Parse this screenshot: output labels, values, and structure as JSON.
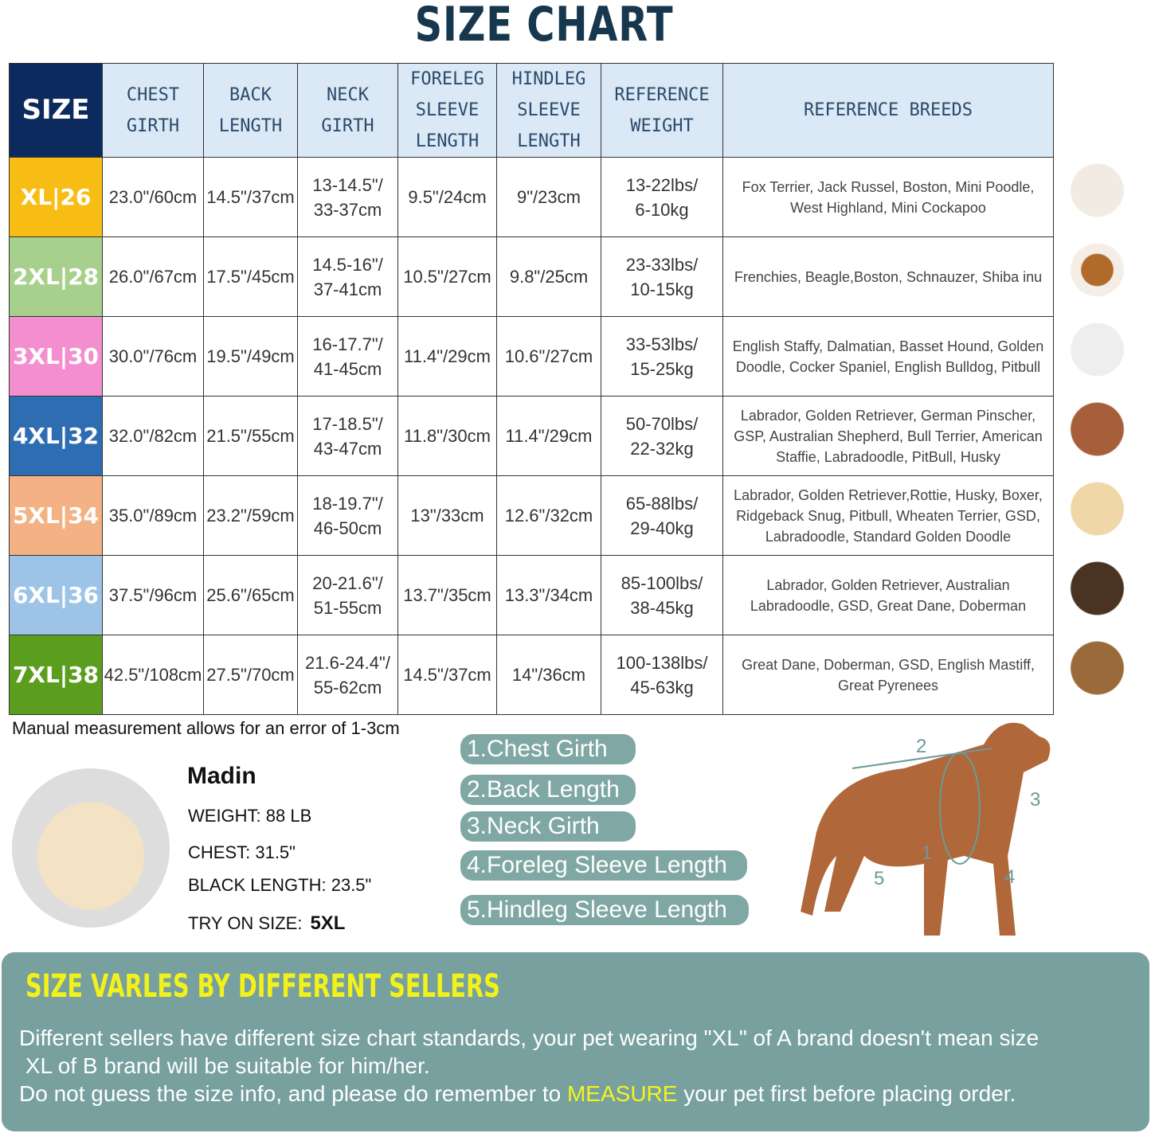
{
  "title": "SIZE CHART",
  "headers": [
    "SIZE",
    "CHEST GIRTH",
    "BACK LENGTH",
    "NECK GIRTH",
    "FORELEG SLEEVE LENGTH",
    "HINDLEG SLEEVE LENGTH",
    "REFERENCE WEIGHT",
    "REFERENCE BREEDS"
  ],
  "colors": {
    "header_bg": "#dbe8f5",
    "size_header": "#0d2a5e"
  },
  "rows": [
    {
      "size": "XL|26",
      "color": "#f8bd14",
      "chest": "23.0\"/60cm",
      "back": "14.5\"/37cm",
      "neck": "13-14.5\"/ 33-37cm",
      "foreleg": "9.5\"/24cm",
      "hindleg": "9\"/23cm",
      "weight": "13-22lbs/ 6-10kg",
      "breeds": "Fox Terrier, Jack Russel, Boston, Mini Poodle, West Highland, Mini Cockapoo"
    },
    {
      "size": "2XL|28",
      "color": "#a8d08d",
      "chest": "26.0\"/67cm",
      "back": "17.5\"/45cm",
      "neck": "14.5-16\"/ 37-41cm",
      "foreleg": "10.5\"/27cm",
      "hindleg": "9.8\"/25cm",
      "weight": "23-33lbs/ 10-15kg",
      "breeds": "Frenchies, Beagle,Boston, Schnauzer, Shiba inu"
    },
    {
      "size": "3XL|30",
      "color": "#f48fcf",
      "chest": "30.0\"/76cm",
      "back": "19.5\"/49cm",
      "neck": "16-17.7\"/ 41-45cm",
      "foreleg": "11.4\"/29cm",
      "hindleg": "10.6\"/27cm",
      "weight": "33-53lbs/ 15-25kg",
      "breeds": "English Staffy, Dalmatian, Basset Hound, Golden Doodle, Cocker Spaniel, English Bulldog, Pitbull"
    },
    {
      "size": "4XL|32",
      "color": "#2f6db3",
      "chest": "32.0\"/82cm",
      "back": "21.5\"/55cm",
      "neck": "17-18.5\"/ 43-47cm",
      "foreleg": "11.8\"/30cm",
      "hindleg": "11.4\"/29cm",
      "weight": "50-70lbs/ 22-32kg",
      "breeds": "Labrador, Golden Retriever, German Pinscher, GSP, Australian Shepherd, Bull Terrier, American Staffie, Labradoodle, PitBull, Husky"
    },
    {
      "size": "5XL|34",
      "color": "#f4b183",
      "chest": "35.0\"/89cm",
      "back": "23.2\"/59cm",
      "neck": "18-19.7\"/ 46-50cm",
      "foreleg": "13\"/33cm",
      "hindleg": "12.6\"/32cm",
      "weight": "65-88lbs/ 29-40kg",
      "breeds": "Labrador, Golden Retriever,Rottie, Husky, Boxer, Ridgeback Snug, Pitbull, Wheaten Terrier, GSD, Labradoodle,  Standard Golden Doodle"
    },
    {
      "size": "6XL|36",
      "color": "#9dc3e6",
      "chest": "37.5\"/96cm",
      "back": "25.6\"/65cm",
      "neck": "20-21.6\"/ 51-55cm",
      "foreleg": "13.7\"/35cm",
      "hindleg": "13.3\"/34cm",
      "weight": "85-100lbs/ 38-45kg",
      "breeds": "Labrador, Golden Retriever, Australian Labradoodle, GSD, Great Dane, Doberman"
    },
    {
      "size": "7XL|38",
      "color": "#5b9e1d",
      "chest": "42.5\"/108cm",
      "back": "27.5\"/70cm",
      "neck": "21.6-24.4\"/ 55-62cm",
      "foreleg": "14.5\"/37cm",
      "hindleg": "14\"/36cm",
      "weight": "100-138lbs/ 45-63kg",
      "breeds": "Great Dane, Doberman, GSD, English Mastiff, Great Pyrenees"
    }
  ],
  "note": "Manual measurement allows for an error of 1-3cm",
  "example": {
    "name": "Madin",
    "weight": "WEIGHT: 88 LB",
    "chest": "CHEST: 31.5\"",
    "back": "BLACK LENGTH: 23.5\"",
    "try_label": "TRY ON SIZE:",
    "try_value": "5XL"
  },
  "measures": [
    "1.Chest Girth",
    "2.Back Length",
    "3.Neck Girth",
    "4.Foreleg Sleeve Length",
    "5.Hindleg Sleeve Length"
  ],
  "diagram_labels": [
    "1",
    "2",
    "3",
    "4",
    "5"
  ],
  "banner": {
    "title": "SIZE VARLES BY DIFFERENT SELLERS",
    "line1": "Different sellers have different size chart standards, your pet wearing \"XL\" of A brand doesn't mean size\n XL of B brand will be suitable for him/her.",
    "line2_pre": "Do not guess the size info, and please do remember to ",
    "line2_hl": "MEASURE",
    "line2_post": " your pet first before placing order.",
    "color": "#77a09f",
    "highlight": "#f5f51c"
  }
}
